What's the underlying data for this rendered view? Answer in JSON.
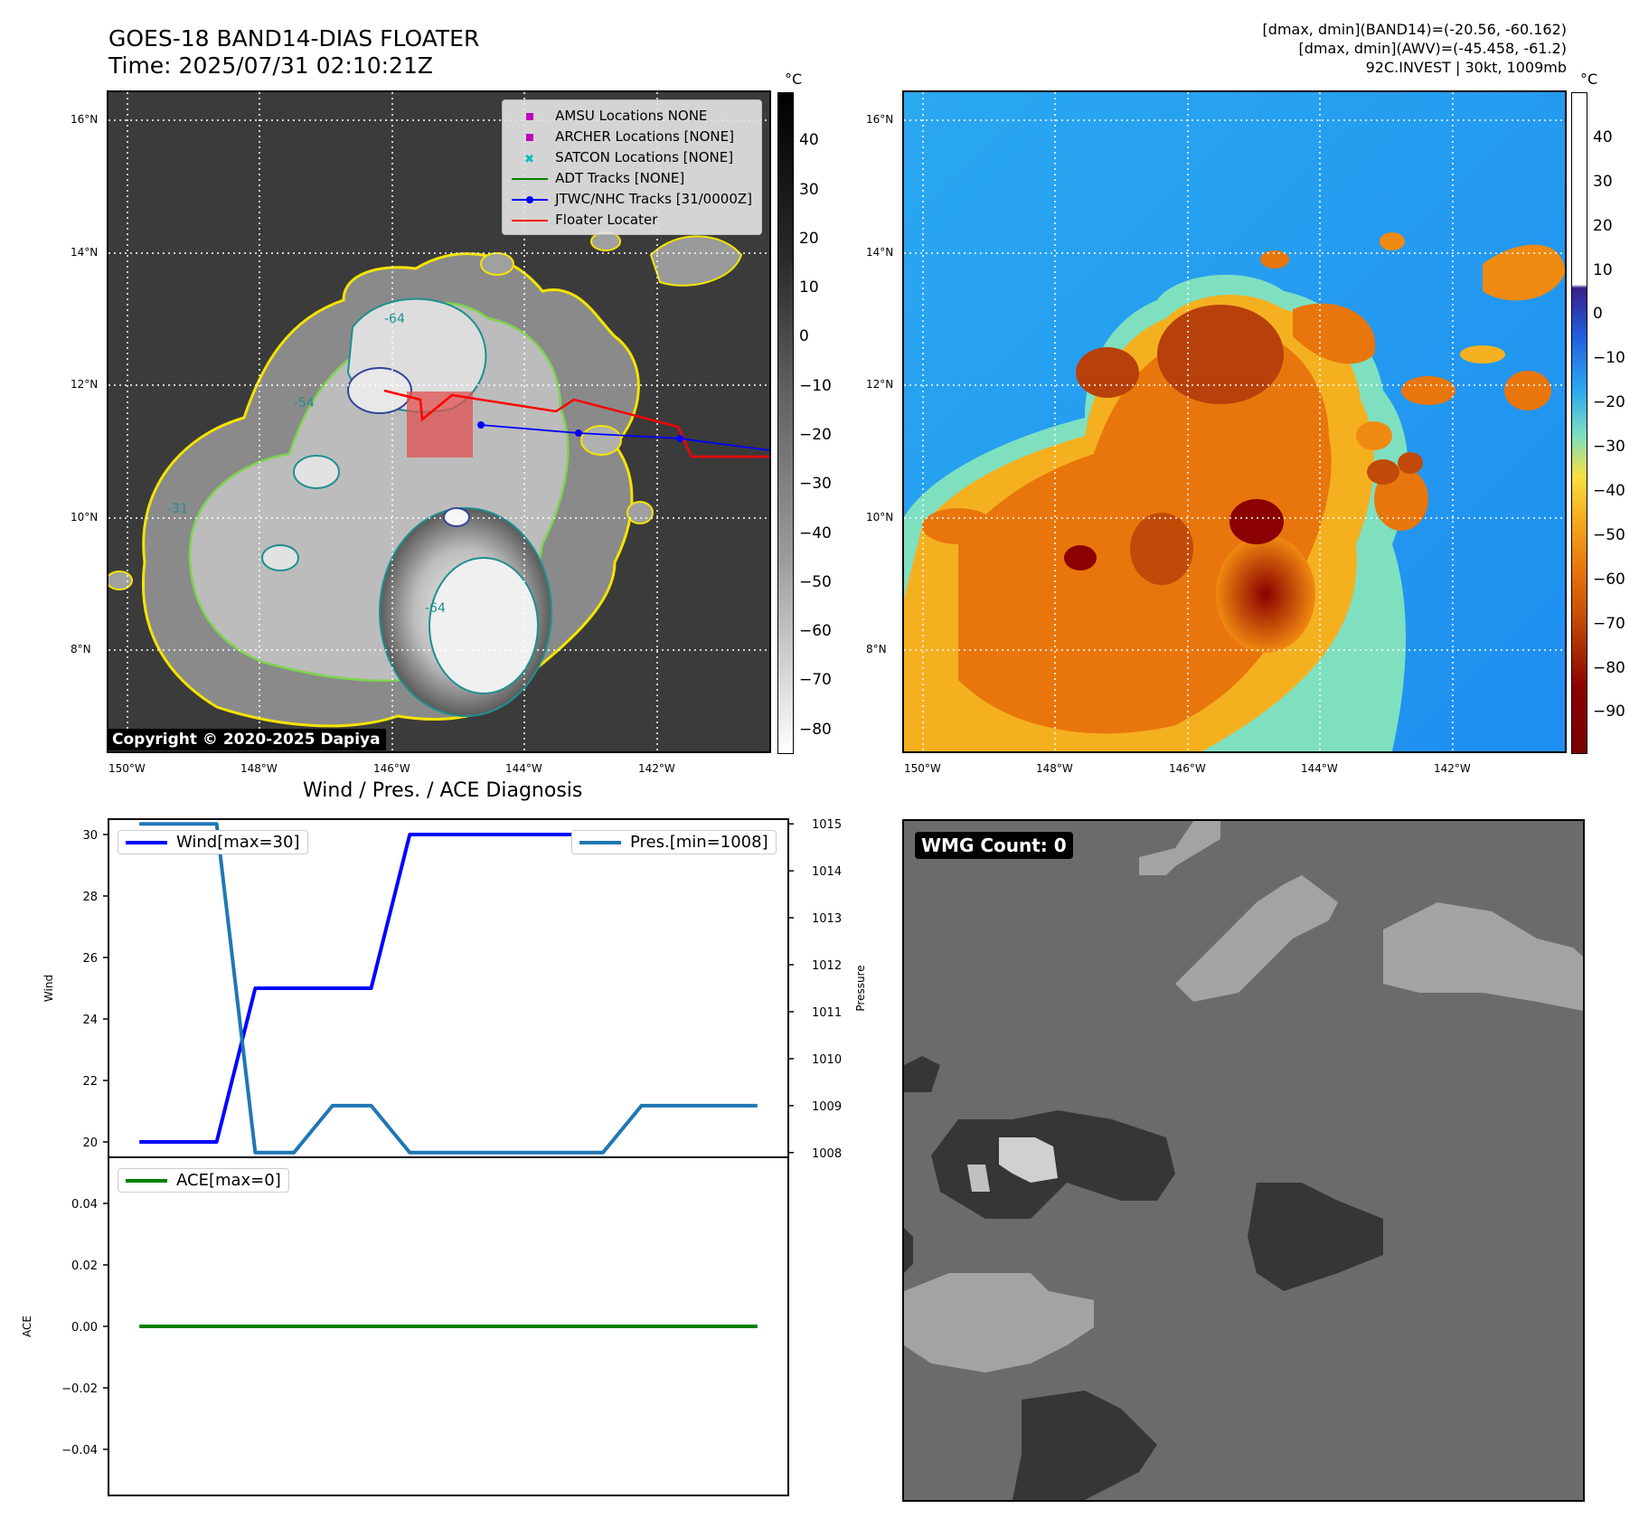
{
  "header": {
    "title_line1": "GOES-18 BAND14-DIAS FLOATER",
    "title_line2": "Time: 2025/07/31 02:10:21Z",
    "info_line1": "[dmax, dmin](BAND14)=(-20.56, -60.162)",
    "info_line2": "[dmax, dmin](AWV)=(-45.458, -61.2)",
    "info_line3": "92C.INVEST | 30kt, 1009mb"
  },
  "map": {
    "lon_labels": [
      "150°W",
      "148°W",
      "146°W",
      "144°W",
      "142°W"
    ],
    "lat_labels": [
      "16°N",
      "14°N",
      "12°N",
      "10°N",
      "8°N"
    ],
    "colorbar_unit": "°C",
    "copyright": "Copyright © 2020-2025 Dapiya",
    "contour_labels": [
      "-64",
      "-54",
      "-31"
    ],
    "legend": [
      {
        "label": "AMSU Locations NONE",
        "color": "#bf00bf",
        "symbol": "square"
      },
      {
        "label": "ARCHER Locations [NONE]",
        "color": "#bf00bf",
        "symbol": "square"
      },
      {
        "label": "SATCON Locations [NONE]",
        "color": "#00bfbf",
        "symbol": "x"
      },
      {
        "label": "ADT Tracks [NONE]",
        "color": "#008000",
        "symbol": "line"
      },
      {
        "label": "JTWC/NHC Tracks [31/0000Z]",
        "color": "#0000ff",
        "symbol": "line-dot"
      },
      {
        "label": "Floater Locater",
        "color": "#ff0000",
        "symbol": "line"
      }
    ]
  },
  "colorbar_left_ticks": [
    "40",
    "30",
    "20",
    "10",
    "0",
    "−10",
    "−20",
    "−30",
    "−40",
    "−50",
    "−60",
    "−70",
    "−80"
  ],
  "colorbar_right_ticks": [
    "40",
    "30",
    "20",
    "10",
    "0",
    "−10",
    "−20",
    "−30",
    "−40",
    "−50",
    "−60",
    "−70",
    "−80",
    "−90"
  ],
  "wmg": {
    "label": "WMG Count: 0"
  },
  "chart_data": [
    {
      "type": "line",
      "title": "Wind / Pres. / ACE Diagnosis",
      "x": [
        0,
        1,
        2,
        3,
        4,
        5,
        6,
        7,
        8,
        9,
        10,
        11,
        12,
        13,
        14,
        15,
        16
      ],
      "series": [
        {
          "name": "Wind[max=30]",
          "axis": "left",
          "color": "#0000ff",
          "values": [
            20,
            20,
            20,
            25,
            25,
            25,
            25,
            30,
            30,
            30,
            30,
            30,
            30,
            30,
            30,
            30,
            30
          ]
        },
        {
          "name": "Pres.[min=1008]",
          "axis": "right",
          "color": "#1f77b4",
          "values": [
            1015,
            1015,
            1015,
            1008,
            1008,
            1009,
            1009,
            1008,
            1008,
            1008,
            1008,
            1008,
            1008,
            1009,
            1009,
            1009,
            1009
          ]
        }
      ],
      "ylabel": "Wind",
      "ylabel_right": "Pressure",
      "yticks": [
        20,
        22,
        24,
        26,
        28,
        30
      ],
      "yticks_right": [
        1008,
        1009,
        1010,
        1011,
        1012,
        1013,
        1014,
        1015
      ],
      "ylim": [
        19.5,
        30.5
      ],
      "ylim_right": [
        1007.9,
        1015.1
      ]
    },
    {
      "type": "line",
      "x": [
        0,
        16
      ],
      "series": [
        {
          "name": "ACE[max=0]",
          "color": "#008000",
          "values": [
            0,
            0
          ]
        }
      ],
      "ylabel": "ACE",
      "yticks": [
        0.04,
        0.02,
        0.0,
        -0.02,
        -0.04
      ],
      "ylim": [
        -0.055,
        0.055
      ]
    }
  ]
}
